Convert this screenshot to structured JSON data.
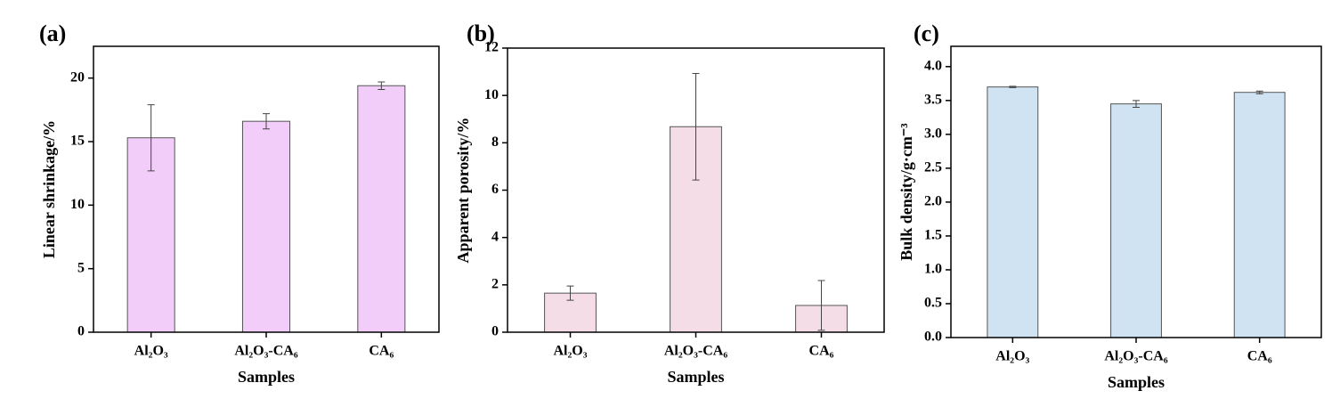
{
  "chart_data": [
    {
      "type": "bar",
      "label": "(a)",
      "categories": [
        "Al₂O₃",
        "Al₂O₃-CA₆",
        "CA₆"
      ],
      "values": [
        15.3,
        16.6,
        19.4
      ],
      "errors": [
        2.6,
        0.6,
        0.3
      ],
      "color": "#f2cdf9",
      "xlabel": "Samples",
      "ylabel": "Linear shrinkage/%",
      "ylim": [
        0,
        22.5
      ],
      "yticks": [
        0,
        5,
        10,
        15,
        20
      ]
    },
    {
      "type": "bar",
      "label": "(b)",
      "categories": [
        "Al₂O₃",
        "Al₂O₃-CA₆",
        "CA₆"
      ],
      "values": [
        1.65,
        8.68,
        1.13
      ],
      "errors": [
        0.3,
        2.25,
        1.05
      ],
      "color": "#f5dde8",
      "xlabel": "Samples",
      "ylabel": "Apparent porosity/%",
      "ylim": [
        0,
        12
      ],
      "yticks": [
        0,
        2,
        4,
        6,
        8,
        10,
        12
      ]
    },
    {
      "type": "bar",
      "label": "(c)",
      "categories": [
        "Al₂O₃",
        "Al₂O₃-CA₆",
        "CA₆"
      ],
      "values": [
        3.7,
        3.45,
        3.62
      ],
      "errors": [
        0.01,
        0.05,
        0.02
      ],
      "color": "#cfe3f3",
      "xlabel": "Samples",
      "ylabel": "Bulk density/g·cm⁻³",
      "ylim": [
        0,
        4.3
      ],
      "yticks": [
        {
          "value": 0,
          "label": "0.0"
        },
        0.5,
        {
          "value": 1,
          "label": "1.0"
        },
        1.5,
        {
          "value": 2,
          "label": "2.0"
        },
        2.5,
        {
          "value": 3,
          "label": "3.0"
        },
        3.5,
        {
          "value": 4,
          "label": "4.0"
        }
      ]
    }
  ]
}
